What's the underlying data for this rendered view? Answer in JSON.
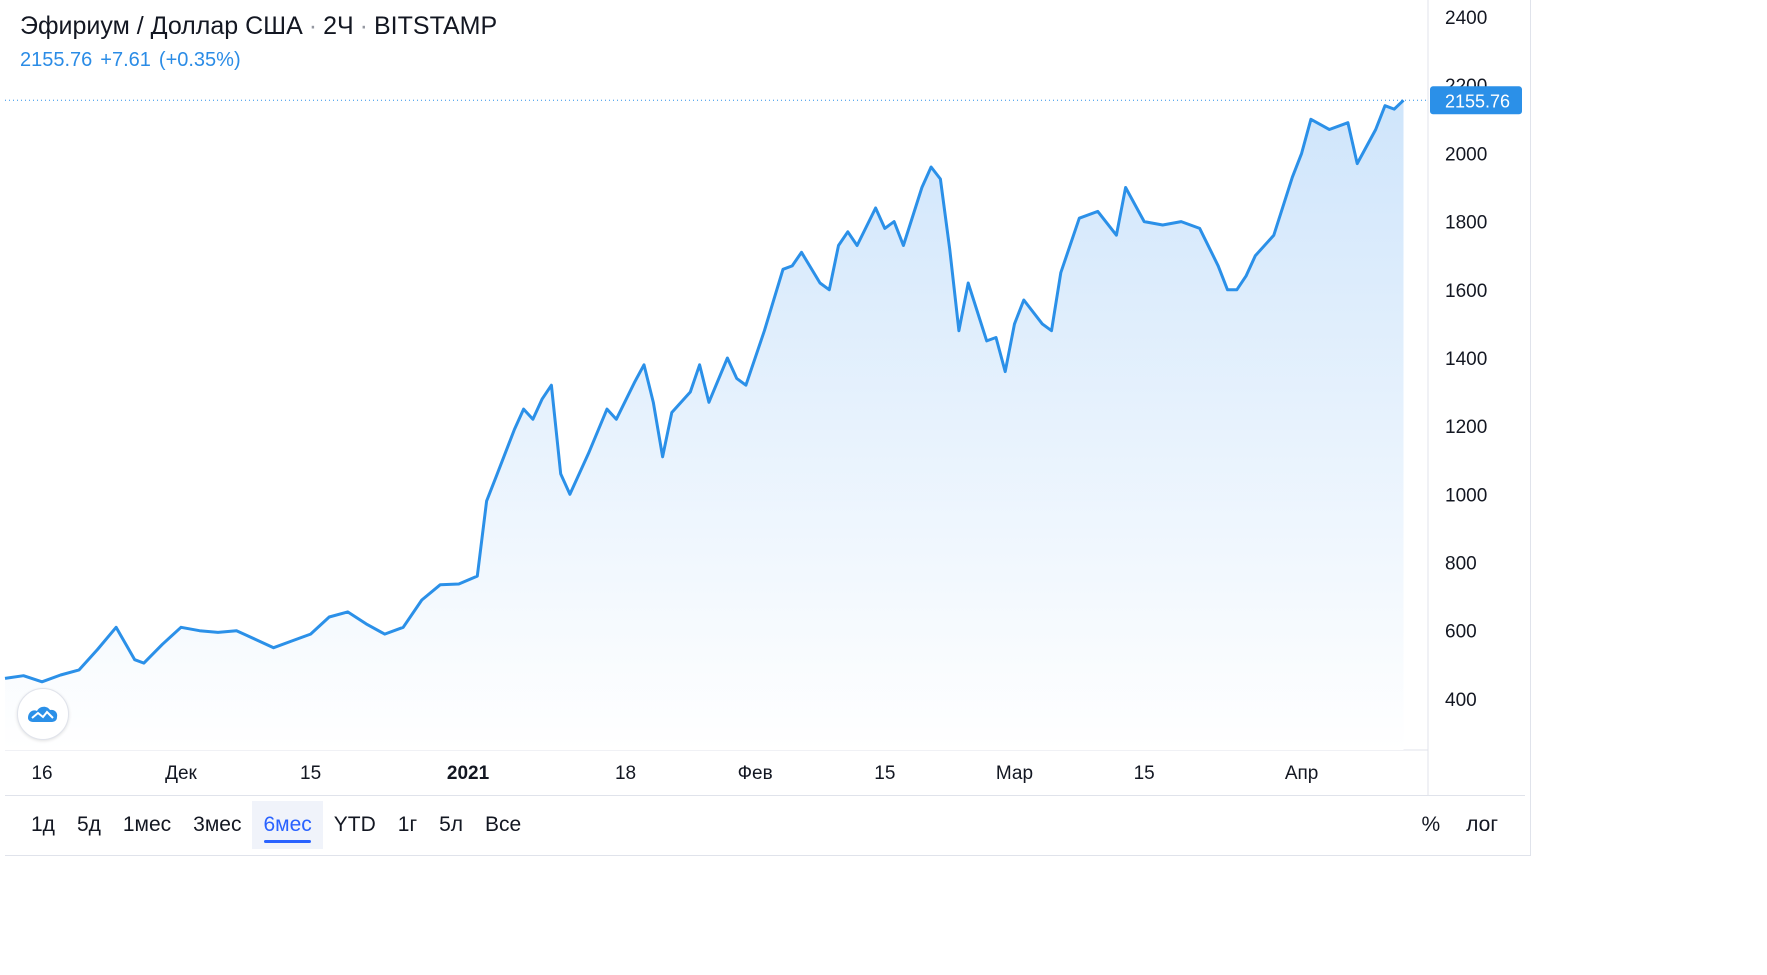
{
  "legend": {
    "symbol": "Эфириум / Доллар США",
    "interval": "2Ч",
    "exchange": "BITSTAMP",
    "price": "2155.76",
    "change": "+7.61",
    "change_pct": "(+0.35%)"
  },
  "price_label": "2155.76",
  "range_buttons": [
    "1д",
    "5д",
    "1мес",
    "3мес",
    "6мес",
    "YTD",
    "1г",
    "5л",
    "Все"
  ],
  "active_range": "6мес",
  "right_buttons": [
    "%",
    "лог"
  ],
  "icons": {
    "logo": "tradingview-logo-icon"
  },
  "colors": {
    "line": "#2b90e8",
    "area_top": "#cfe5fb",
    "area_bottom": "#ffffff",
    "price_label_bg": "#2b90e8"
  },
  "chart_data": {
    "type": "area",
    "title": "Эфириум / Доллар США",
    "xlabel": "",
    "ylabel": "",
    "ylim": [
      250,
      2450
    ],
    "xlim": [
      "2020-11-12",
      "2021-04-14"
    ],
    "y_ticks": [
      400,
      600,
      800,
      1000,
      1200,
      1400,
      1600,
      1800,
      2000,
      2200,
      2400
    ],
    "x_ticks": [
      {
        "date": "2020-11-16",
        "label": "16"
      },
      {
        "date": "2020-12-01",
        "label": "Дек"
      },
      {
        "date": "2020-12-15",
        "label": "15"
      },
      {
        "date": "2021-01-01",
        "label": "2021"
      },
      {
        "date": "2021-01-18",
        "label": "18"
      },
      {
        "date": "2021-02-01",
        "label": "Фев"
      },
      {
        "date": "2021-02-15",
        "label": "15"
      },
      {
        "date": "2021-03-01",
        "label": "Мар"
      },
      {
        "date": "2021-03-15",
        "label": "15"
      },
      {
        "date": "2021-04-01",
        "label": "Апр"
      }
    ],
    "last_value": 2155.76,
    "grid": false,
    "series": [
      {
        "points": [
          [
            "2020-11-12",
            460
          ],
          [
            "2020-11-14",
            468
          ],
          [
            "2020-11-16",
            450
          ],
          [
            "2020-11-18",
            470
          ],
          [
            "2020-11-20",
            485
          ],
          [
            "2020-11-22",
            545
          ],
          [
            "2020-11-24",
            610
          ],
          [
            "2020-11-26",
            515
          ],
          [
            "2020-11-27",
            505
          ],
          [
            "2020-11-29",
            560
          ],
          [
            "2020-12-01",
            610
          ],
          [
            "2020-12-03",
            600
          ],
          [
            "2020-12-05",
            595
          ],
          [
            "2020-12-07",
            600
          ],
          [
            "2020-12-09",
            575
          ],
          [
            "2020-12-11",
            550
          ],
          [
            "2020-12-13",
            570
          ],
          [
            "2020-12-15",
            590
          ],
          [
            "2020-12-17",
            640
          ],
          [
            "2020-12-19",
            655
          ],
          [
            "2020-12-21",
            620
          ],
          [
            "2020-12-23",
            590
          ],
          [
            "2020-12-25",
            610
          ],
          [
            "2020-12-27",
            690
          ],
          [
            "2020-12-29",
            735
          ],
          [
            "2020-12-31",
            737
          ],
          [
            "2021-01-02",
            760
          ],
          [
            "2021-01-03",
            980
          ],
          [
            "2021-01-04",
            1050
          ],
          [
            "2021-01-06",
            1190
          ],
          [
            "2021-01-07",
            1250
          ],
          [
            "2021-01-08",
            1220
          ],
          [
            "2021-01-09",
            1280
          ],
          [
            "2021-01-10",
            1320
          ],
          [
            "2021-01-11",
            1060
          ],
          [
            "2021-01-12",
            1000
          ],
          [
            "2021-01-14",
            1120
          ],
          [
            "2021-01-16",
            1250
          ],
          [
            "2021-01-17",
            1220
          ],
          [
            "2021-01-19",
            1330
          ],
          [
            "2021-01-20",
            1380
          ],
          [
            "2021-01-21",
            1270
          ],
          [
            "2021-01-22",
            1110
          ],
          [
            "2021-01-23",
            1240
          ],
          [
            "2021-01-25",
            1300
          ],
          [
            "2021-01-26",
            1380
          ],
          [
            "2021-01-27",
            1270
          ],
          [
            "2021-01-29",
            1400
          ],
          [
            "2021-01-30",
            1340
          ],
          [
            "2021-01-31",
            1320
          ],
          [
            "2021-02-02",
            1480
          ],
          [
            "2021-02-04",
            1660
          ],
          [
            "2021-02-05",
            1670
          ],
          [
            "2021-02-06",
            1710
          ],
          [
            "2021-02-08",
            1620
          ],
          [
            "2021-02-09",
            1600
          ],
          [
            "2021-02-10",
            1730
          ],
          [
            "2021-02-11",
            1770
          ],
          [
            "2021-02-12",
            1730
          ],
          [
            "2021-02-14",
            1840
          ],
          [
            "2021-02-15",
            1780
          ],
          [
            "2021-02-16",
            1800
          ],
          [
            "2021-02-17",
            1730
          ],
          [
            "2021-02-19",
            1900
          ],
          [
            "2021-02-20",
            1960
          ],
          [
            "2021-02-21",
            1925
          ],
          [
            "2021-02-22",
            1720
          ],
          [
            "2021-02-23",
            1480
          ],
          [
            "2021-02-24",
            1620
          ],
          [
            "2021-02-26",
            1450
          ],
          [
            "2021-02-27",
            1460
          ],
          [
            "2021-02-28",
            1360
          ],
          [
            "2021-03-01",
            1500
          ],
          [
            "2021-03-02",
            1570
          ],
          [
            "2021-03-04",
            1500
          ],
          [
            "2021-03-05",
            1480
          ],
          [
            "2021-03-06",
            1650
          ],
          [
            "2021-03-08",
            1810
          ],
          [
            "2021-03-10",
            1830
          ],
          [
            "2021-03-12",
            1760
          ],
          [
            "2021-03-13",
            1900
          ],
          [
            "2021-03-15",
            1800
          ],
          [
            "2021-03-17",
            1790
          ],
          [
            "2021-03-19",
            1800
          ],
          [
            "2021-03-21",
            1780
          ],
          [
            "2021-03-23",
            1670
          ],
          [
            "2021-03-24",
            1600
          ],
          [
            "2021-03-25",
            1600
          ],
          [
            "2021-03-26",
            1640
          ],
          [
            "2021-03-27",
            1700
          ],
          [
            "2021-03-29",
            1760
          ],
          [
            "2021-03-31",
            1930
          ],
          [
            "2021-04-01",
            2000
          ],
          [
            "2021-04-02",
            2100
          ],
          [
            "2021-04-04",
            2070
          ],
          [
            "2021-04-06",
            2090
          ],
          [
            "2021-04-07",
            1970
          ],
          [
            "2021-04-09",
            2070
          ],
          [
            "2021-04-10",
            2140
          ],
          [
            "2021-04-11",
            2130
          ],
          [
            "2021-04-12",
            2155.76
          ]
        ]
      }
    ]
  }
}
